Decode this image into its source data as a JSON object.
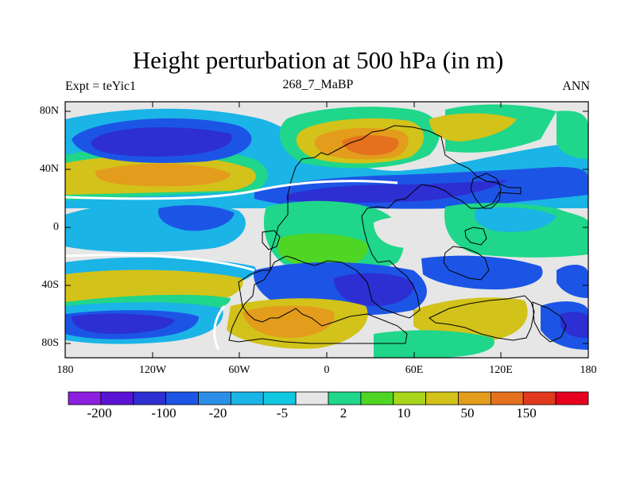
{
  "title": "Height perturbation at 500 hPa (in m)",
  "subtitle_left": "Expt = teYic1",
  "subtitle_center": "268_7_MaBP",
  "subtitle_right": "ANN",
  "y_ticks": [
    "80N",
    "40N",
    "0",
    "40S",
    "80S"
  ],
  "x_ticks": [
    "180",
    "120W",
    "60W",
    "0",
    "60E",
    "120E",
    "180"
  ],
  "colorbar": {
    "labels": [
      "-200",
      "-100",
      "-20",
      "-5",
      "2",
      "10",
      "50",
      "150"
    ],
    "colors": [
      "#8c1fe0",
      "#5a14d6",
      "#2d2fd2",
      "#1c55e6",
      "#2b8fe8",
      "#1bb4e6",
      "#11c8e2",
      "#e6e6e6",
      "#1fd68a",
      "#4fd624",
      "#a8d61a",
      "#d2c21a",
      "#e39c1c",
      "#e5711e",
      "#e23a1e",
      "#e6001e"
    ]
  },
  "colors": {
    "background": "#e6e6e6",
    "light_blue": "#1bb4e6",
    "blue": "#1c55e6",
    "dark_blue": "#2d2fd2",
    "green": "#1fd68a",
    "yellow": "#d2c21a",
    "orange": "#e39c1c",
    "red_orange": "#e5711e"
  }
}
